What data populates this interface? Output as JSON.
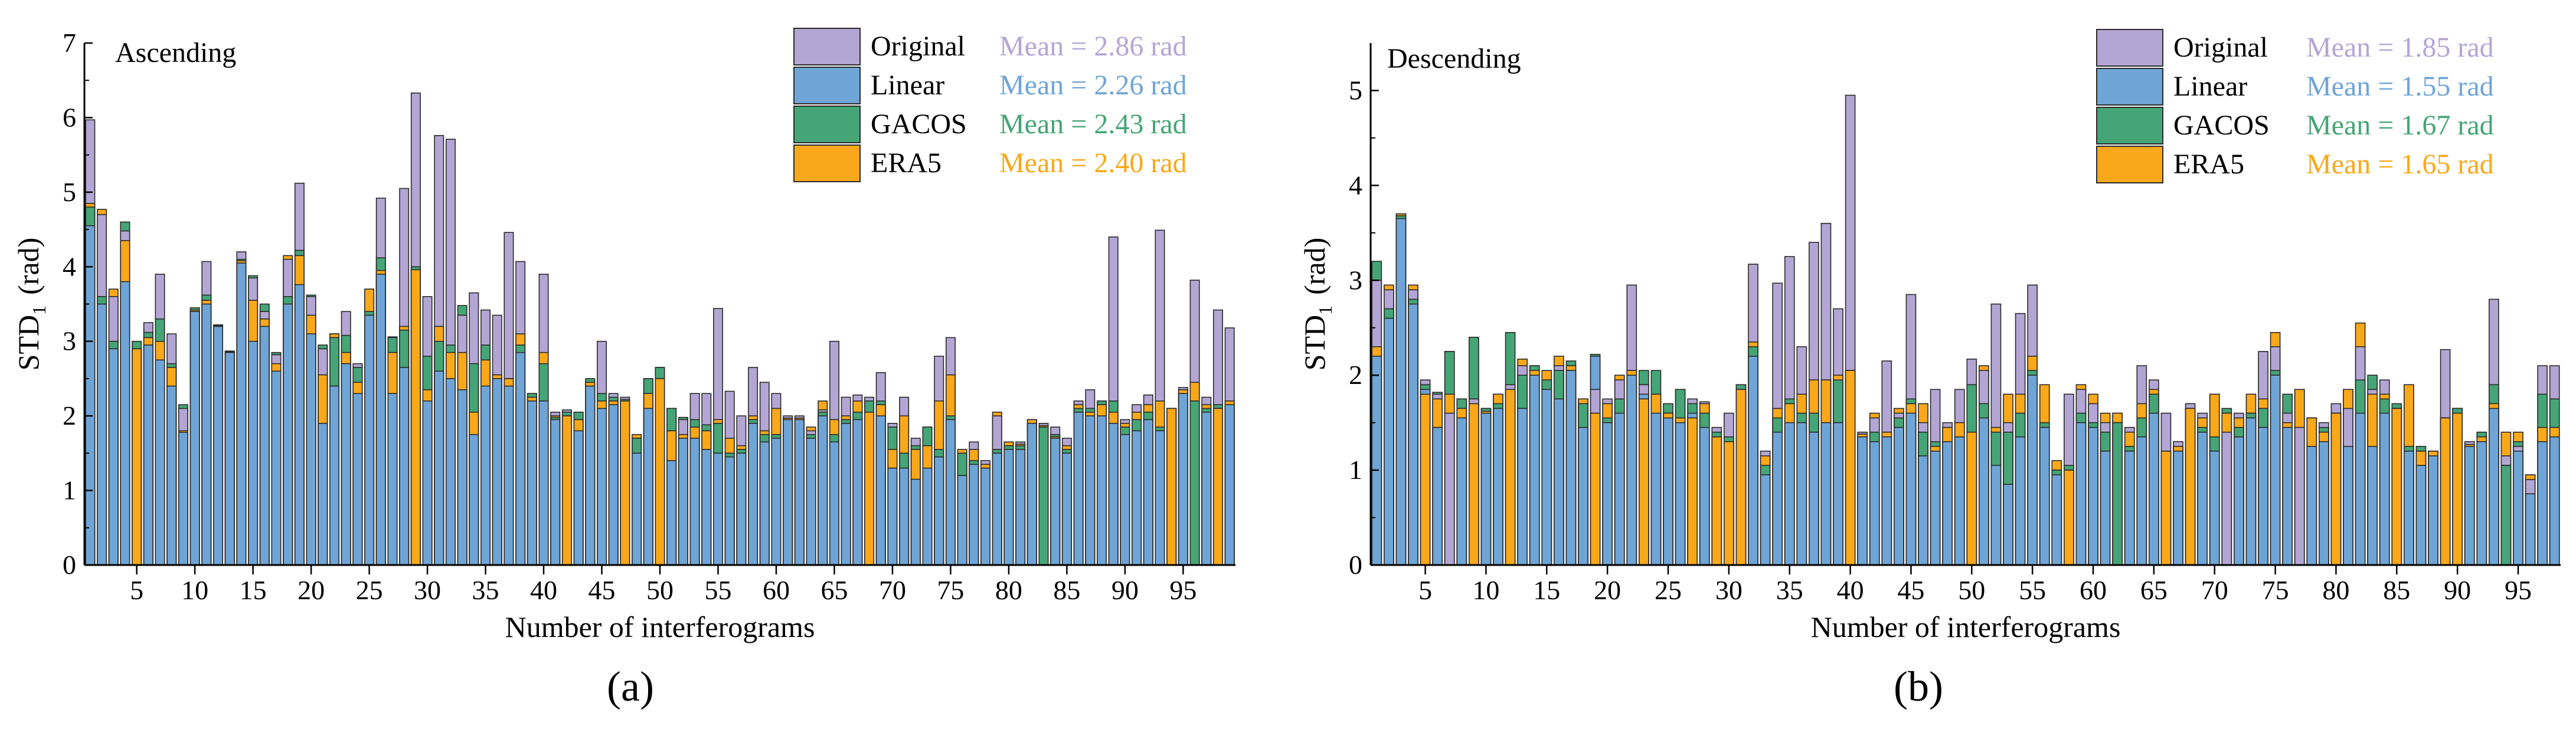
{
  "figure": {
    "panel_a_label": "(a)",
    "panel_b_label": "(b)"
  },
  "chart_data": [
    {
      "type": "bar",
      "panel": "a",
      "annotation": "Ascending",
      "xlabel": "Number of interferograms",
      "ylabel_main": "STD",
      "ylabel_sub": "1",
      "ylabel_unit": "(rad)",
      "ylim": [
        0,
        7
      ],
      "yticks": [
        0,
        1,
        2,
        3,
        4,
        5,
        6,
        7
      ],
      "xticks": [
        5,
        10,
        15,
        20,
        25,
        30,
        35,
        40,
        45,
        50,
        55,
        60,
        65,
        70,
        75,
        80,
        85,
        90,
        95
      ],
      "n": 99,
      "legend": [
        {
          "name": "Original",
          "color": "#B3A6D4",
          "mean": "Mean = 2.86 rad"
        },
        {
          "name": "Linear",
          "color": "#6FA5D6",
          "mean": "Mean = 2.26 rad"
        },
        {
          "name": "GACOS",
          "color": "#45A576",
          "mean": "Mean = 2.43 rad"
        },
        {
          "name": "ERA5",
          "color": "#F9A81A",
          "mean": "Mean = 2.40 rad"
        }
      ],
      "series": [
        {
          "name": "Original",
          "values": [
            5.97,
            4.7,
            3.6,
            4.48,
            2.9,
            3.25,
            3.9,
            3.1,
            2.1,
            3.4,
            4.07,
            3.21,
            2.85,
            4.2,
            3.85,
            3.4,
            2.82,
            4.1,
            5.12,
            3.6,
            2.9,
            3.1,
            3.4,
            2.7,
            3.7,
            4.92,
            3.06,
            5.05,
            6.33,
            3.6,
            5.76,
            5.71,
            3.35,
            3.65,
            3.42,
            3.35,
            4.46,
            4.07,
            2.3,
            3.9,
            2.05,
            2.08,
            2.05,
            2.45,
            3.0,
            2.3,
            2.25,
            1.7,
            2.5,
            2.65,
            2.1,
            1.95,
            2.3,
            2.3,
            3.44,
            2.33,
            2.0,
            2.65,
            2.45,
            2.3,
            2.0,
            2.0,
            1.8,
            2.08,
            3.0,
            2.25,
            2.28,
            2.25,
            2.58,
            1.9,
            2.25,
            1.7,
            1.85,
            2.8,
            3.05,
            1.5,
            1.65,
            1.4,
            2.0,
            1.65,
            1.65,
            1.95,
            1.9,
            1.85,
            1.7,
            2.2,
            2.35,
            2.2,
            4.4,
            1.95,
            2.15,
            2.28,
            4.49,
            2.1,
            2.38,
            3.82,
            2.25,
            3.42,
            3.18
          ]
        },
        {
          "name": "Linear",
          "values": [
            4.55,
            3.5,
            2.9,
            3.8,
            2.9,
            2.95,
            2.75,
            2.4,
            1.78,
            3.4,
            3.5,
            3.2,
            2.85,
            4.05,
            3.0,
            3.2,
            2.6,
            3.5,
            3.76,
            3.1,
            1.9,
            2.4,
            2.7,
            2.3,
            3.35,
            3.9,
            2.3,
            2.65,
            3.96,
            2.2,
            2.6,
            2.5,
            2.35,
            1.75,
            2.4,
            2.5,
            2.4,
            2.85,
            2.2,
            2.2,
            1.95,
            2.0,
            1.8,
            2.4,
            2.1,
            2.15,
            2.2,
            1.5,
            2.1,
            2.5,
            1.4,
            1.7,
            1.7,
            1.55,
            1.5,
            1.45,
            1.5,
            1.9,
            1.65,
            1.7,
            1.95,
            1.95,
            1.7,
            2.0,
            1.65,
            1.9,
            1.95,
            2.05,
            2.0,
            1.3,
            1.3,
            1.15,
            1.3,
            1.45,
            1.95,
            1.2,
            1.35,
            1.3,
            1.5,
            1.55,
            1.55,
            1.9,
            1.85,
            1.7,
            1.5,
            2.05,
            2.0,
            2.0,
            1.9,
            1.75,
            1.8,
            1.95,
            1.8,
            2.1,
            2.3,
            2.2,
            2.05,
            2.1,
            2.15
          ]
        },
        {
          "name": "GACOS",
          "values": [
            4.8,
            3.6,
            3.0,
            4.6,
            3.0,
            3.12,
            3.3,
            2.7,
            2.15,
            3.45,
            3.62,
            3.22,
            2.87,
            4.1,
            3.88,
            3.5,
            2.85,
            3.6,
            4.22,
            3.62,
            2.95,
            3.05,
            3.08,
            2.65,
            3.4,
            4.12,
            3.05,
            3.15,
            4.0,
            2.8,
            3.0,
            2.95,
            3.48,
            2.7,
            2.95,
            2.55,
            2.5,
            2.95,
            2.3,
            2.7,
            1.98,
            2.05,
            2.05,
            2.5,
            2.3,
            2.25,
            2.22,
            1.7,
            2.5,
            2.65,
            2.1,
            1.98,
            1.95,
            1.88,
            1.9,
            1.5,
            1.55,
            1.95,
            1.75,
            1.75,
            1.97,
            1.97,
            1.75,
            2.05,
            1.75,
            1.95,
            2.05,
            2.2,
            2.2,
            1.85,
            1.5,
            1.6,
            1.85,
            1.55,
            2.0,
            1.5,
            1.4,
            1.35,
            1.55,
            1.6,
            1.6,
            1.95,
            1.85,
            1.75,
            1.55,
            2.1,
            2.1,
            2.2,
            2.2,
            1.85,
            1.95,
            2.05,
            1.85,
            2.1,
            2.35,
            2.2,
            2.1,
            2.15,
            2.2
          ]
        },
        {
          "name": "ERA5",
          "values": [
            4.85,
            4.77,
            3.7,
            4.35,
            2.9,
            3.05,
            3.0,
            2.65,
            1.8,
            3.42,
            3.55,
            3.22,
            2.86,
            4.08,
            3.55,
            3.3,
            2.7,
            4.15,
            4.15,
            3.35,
            2.55,
            3.1,
            2.85,
            2.45,
            3.7,
            3.95,
            2.85,
            3.2,
            3.96,
            2.35,
            3.2,
            2.85,
            2.85,
            2.05,
            2.75,
            2.55,
            2.5,
            3.1,
            2.25,
            2.85,
            2.0,
            2.0,
            1.95,
            2.45,
            2.2,
            2.2,
            2.2,
            1.75,
            2.3,
            2.5,
            1.8,
            1.75,
            1.85,
            1.8,
            1.95,
            1.7,
            1.6,
            2.0,
            1.8,
            2.1,
            1.97,
            1.97,
            1.85,
            2.2,
            1.95,
            2.0,
            2.2,
            2.05,
            2.15,
            1.55,
            2.0,
            1.55,
            1.6,
            2.2,
            2.55,
            1.55,
            1.55,
            1.35,
            2.05,
            1.65,
            1.62,
            1.95,
            1.87,
            1.72,
            1.6,
            2.15,
            2.05,
            2.15,
            2.05,
            1.9,
            2.05,
            2.15,
            2.2,
            2.1,
            2.35,
            2.45,
            2.15,
            2.1,
            2.2
          ]
        }
      ]
    },
    {
      "type": "bar",
      "panel": "b",
      "annotation": "Descending",
      "xlabel": "Number of interferograms",
      "ylabel_main": "STD",
      "ylabel_sub": "1",
      "ylabel_unit": "(rad)",
      "ylim": [
        0,
        5.5
      ],
      "yticks": [
        0,
        1,
        2,
        3,
        4,
        5
      ],
      "xticks": [
        5,
        10,
        15,
        20,
        25,
        30,
        35,
        40,
        45,
        50,
        55,
        60,
        65,
        70,
        75,
        80,
        85,
        90,
        95
      ],
      "n": 98,
      "legend": [
        {
          "name": "Original",
          "color": "#B3A6D4",
          "mean": "Mean = 1.85 rad"
        },
        {
          "name": "Linear",
          "color": "#6FA5D6",
          "mean": "Mean = 1.55 rad"
        },
        {
          "name": "GACOS",
          "color": "#45A576",
          "mean": "Mean = 1.67 rad"
        },
        {
          "name": "ERA5",
          "color": "#F9A81A",
          "mean": "Mean = 1.65 rad"
        }
      ],
      "series": [
        {
          "name": "Original",
          "values": [
            3.0,
            2.9,
            3.7,
            2.9,
            1.95,
            1.8,
            1.6,
            1.75,
            1.75,
            1.65,
            1.8,
            1.9,
            2.1,
            2.1,
            1.95,
            2.1,
            2.05,
            1.75,
            1.85,
            1.75,
            1.95,
            2.95,
            1.9,
            1.8,
            1.6,
            1.85,
            1.75,
            1.72,
            1.45,
            1.6,
            1.9,
            3.17,
            1.2,
            2.97,
            3.25,
            2.3,
            3.4,
            3.6,
            2.7,
            4.95,
            1.4,
            1.55,
            2.15,
            1.6,
            2.85,
            1.5,
            1.85,
            1.5,
            1.85,
            2.17,
            2.05,
            2.75,
            1.5,
            2.65,
            2.95,
            1.45,
            1.0,
            1.8,
            1.85,
            1.7,
            1.5,
            1.6,
            1.45,
            2.1,
            1.95,
            1.6,
            1.3,
            1.7,
            1.6,
            1.8,
            1.4,
            1.6,
            1.6,
            2.25,
            2.3,
            1.6,
            1.45,
            1.55,
            1.5,
            1.7,
            1.65,
            2.3,
            1.85,
            1.95,
            1.65,
            1.9,
            1.2,
            1.2,
            2.27,
            1.65,
            1.3,
            1.4,
            2.8,
            1.15,
            1.25,
            0.9,
            2.1,
            2.1
          ]
        },
        {
          "name": "Linear",
          "values": [
            2.2,
            2.6,
            3.65,
            2.75,
            1.85,
            1.45,
            2.25,
            1.55,
            2.4,
            1.6,
            1.65,
            1.85,
            1.65,
            2.0,
            1.85,
            1.75,
            2.05,
            1.45,
            2.2,
            1.5,
            1.6,
            2.0,
            1.8,
            1.6,
            1.55,
            1.5,
            1.6,
            1.45,
            1.35,
            1.3,
            1.85,
            2.2,
            0.95,
            1.4,
            1.5,
            1.5,
            1.4,
            1.5,
            1.5,
            2.05,
            1.35,
            1.3,
            1.35,
            1.45,
            1.6,
            1.15,
            1.2,
            1.3,
            1.35,
            1.4,
            1.55,
            1.05,
            0.85,
            1.35,
            2.0,
            1.45,
            0.95,
            1.0,
            1.5,
            1.45,
            1.2,
            1.5,
            1.2,
            1.35,
            1.6,
            1.2,
            1.2,
            1.65,
            1.4,
            1.2,
            1.6,
            1.35,
            1.55,
            1.45,
            2.0,
            1.45,
            1.85,
            1.25,
            1.3,
            1.6,
            1.25,
            1.6,
            1.25,
            1.6,
            1.65,
            1.2,
            1.05,
            1.15,
            1.55,
            1.65,
            1.25,
            1.3,
            1.65,
            1.05,
            1.2,
            0.75,
            1.3,
            1.35
          ]
        },
        {
          "name": "GACOS",
          "values": [
            3.2,
            2.7,
            3.68,
            2.8,
            1.9,
            1.82,
            2.25,
            1.75,
            2.4,
            1.65,
            1.7,
            2.45,
            2.0,
            2.1,
            1.95,
            2.05,
            2.15,
            1.7,
            2.22,
            1.55,
            1.75,
            2.05,
            2.05,
            2.05,
            1.7,
            1.85,
            1.7,
            1.6,
            1.4,
            1.35,
            1.9,
            2.3,
            1.05,
            1.55,
            1.75,
            1.6,
            1.6,
            1.95,
            1.95,
            2.05,
            1.38,
            1.4,
            1.4,
            1.55,
            1.75,
            1.4,
            1.3,
            1.45,
            1.5,
            1.9,
            1.7,
            1.4,
            1.4,
            1.6,
            2.05,
            1.5,
            1.0,
            1.05,
            1.6,
            1.5,
            1.4,
            1.5,
            1.25,
            1.55,
            1.8,
            1.2,
            1.25,
            1.65,
            1.45,
            1.35,
            1.65,
            1.45,
            1.6,
            1.65,
            2.05,
            1.8,
            1.85,
            1.55,
            1.45,
            1.6,
            1.85,
            1.95,
            2.0,
            1.75,
            1.7,
            1.25,
            1.25,
            1.2,
            1.55,
            1.65,
            1.27,
            1.4,
            1.9,
            1.05,
            1.3,
            0.95,
            1.8,
            1.75
          ]
        },
        {
          "name": "ERA5",
          "values": [
            2.3,
            2.95,
            3.7,
            2.95,
            1.8,
            1.75,
            1.8,
            1.65,
            1.7,
            1.62,
            1.8,
            1.85,
            2.17,
            2.05,
            2.05,
            2.2,
            2.1,
            1.75,
            1.6,
            1.7,
            2.0,
            2.05,
            1.75,
            1.8,
            1.6,
            1.55,
            1.55,
            1.7,
            1.35,
            1.3,
            1.85,
            2.35,
            1.15,
            1.65,
            1.7,
            1.8,
            1.95,
            1.95,
            2.0,
            2.05,
            1.38,
            1.6,
            1.4,
            1.65,
            1.7,
            1.7,
            1.25,
            1.45,
            1.5,
            1.4,
            2.1,
            1.45,
            1.8,
            1.8,
            2.2,
            1.9,
            1.1,
            1.0,
            1.9,
            1.8,
            1.6,
            1.6,
            1.4,
            1.7,
            1.85,
            1.2,
            1.25,
            1.65,
            1.55,
            1.8,
            1.6,
            1.55,
            1.8,
            1.75,
            2.45,
            1.5,
            1.85,
            1.55,
            1.4,
            1.6,
            1.85,
            2.55,
            1.8,
            1.8,
            1.65,
            1.9,
            1.2,
            1.2,
            1.55,
            1.6,
            1.27,
            1.35,
            1.7,
            1.4,
            1.4,
            0.95,
            1.45,
            1.45
          ]
        }
      ]
    }
  ]
}
